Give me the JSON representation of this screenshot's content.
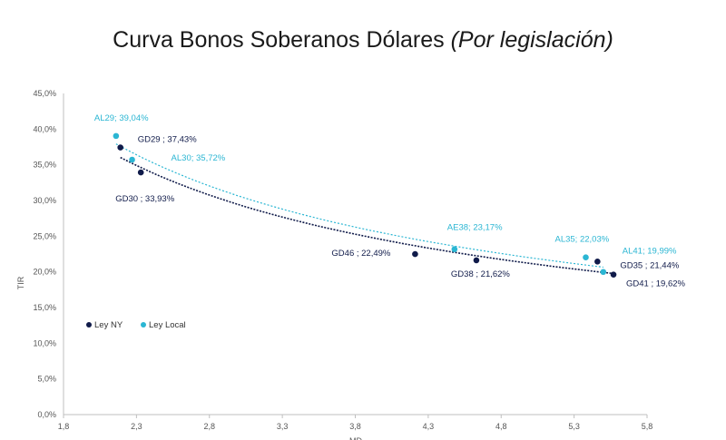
{
  "title": {
    "main": "Curva Bonos Soberanos Dólares",
    "sub": "(Por legislación)"
  },
  "chart_data": {
    "type": "scatter",
    "title": "Curva Bonos Soberanos Dólares (Por legislación)",
    "xlabel": "MD",
    "ylabel": "TIR",
    "xlim": [
      1.8,
      5.8
    ],
    "ylim": [
      0,
      45
    ],
    "x_ticks": [
      "1,8",
      "2,3",
      "2,8",
      "3,3",
      "3,8",
      "4,3",
      "4,8",
      "5,3",
      "5,8"
    ],
    "y_ticks": [
      "0,0%",
      "5,0%",
      "10,0%",
      "15,0%",
      "20,0%",
      "25,0%",
      "30,0%",
      "35,0%",
      "40,0%",
      "45,0%"
    ],
    "grid": false,
    "legend_position": "bottom-left",
    "colors": {
      "ny": "#101b4a",
      "local": "#2bb6d3"
    },
    "series": [
      {
        "name": "Ley NY",
        "color": "#101b4a",
        "trendline": true,
        "points": [
          {
            "label": "GD29 ; 37,43%",
            "x": 2.19,
            "y": 37.43
          },
          {
            "label": "GD30 ; 33,93%",
            "x": 2.33,
            "y": 33.93
          },
          {
            "label": "GD46 ; 22,49%",
            "x": 4.21,
            "y": 22.49
          },
          {
            "label": "GD38 ; 21,62%",
            "x": 4.63,
            "y": 21.62
          },
          {
            "label": "GD35 ; 21,44%",
            "x": 5.46,
            "y": 21.44
          },
          {
            "label": "GD41 ; 19,62%",
            "x": 5.57,
            "y": 19.62
          }
        ]
      },
      {
        "name": "Ley Local",
        "color": "#2bb6d3",
        "trendline": true,
        "points": [
          {
            "label": "AL29; 39,04%",
            "x": 2.16,
            "y": 39.04
          },
          {
            "label": "AL30; 35,72%",
            "x": 2.27,
            "y": 35.72
          },
          {
            "label": "AE38; 23,17%",
            "x": 4.48,
            "y": 23.17
          },
          {
            "label": "AL35; 22,03%",
            "x": 5.38,
            "y": 22.03
          },
          {
            "label": "AL41; 19,99%",
            "x": 5.5,
            "y": 19.99
          }
        ]
      }
    ]
  }
}
